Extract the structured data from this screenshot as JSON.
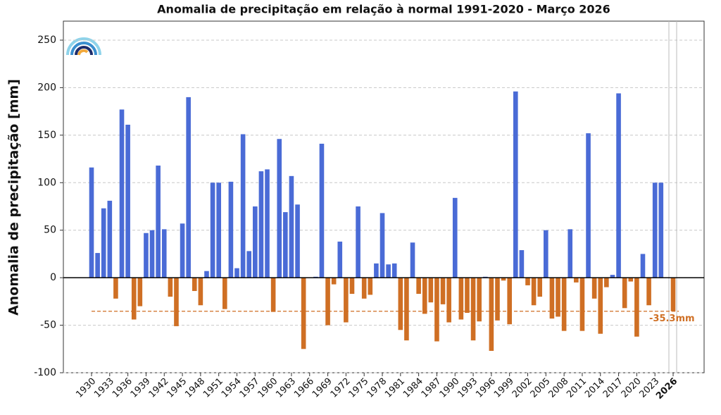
{
  "chart_data": {
    "type": "bar",
    "title": "Anomalia de precipitação em relação à normal 1991-2020 - Março 2026",
    "y_label": "Anomalia de precipitação [mm]",
    "categories": [
      "1930",
      null,
      null,
      "1933",
      null,
      null,
      "1936",
      null,
      null,
      "1939",
      null,
      null,
      "1942",
      null,
      null,
      "1945",
      null,
      null,
      "1948",
      null,
      null,
      "1951",
      null,
      null,
      "1954",
      null,
      null,
      "1957",
      null,
      null,
      "1960",
      null,
      null,
      "1963",
      null,
      null,
      "1966",
      null,
      null,
      "1969",
      null,
      null,
      "1972",
      null,
      null,
      "1975",
      null,
      null,
      "1978",
      null,
      null,
      "1981",
      null,
      null,
      "1984",
      null,
      null,
      "1987",
      null,
      null,
      "1990",
      null,
      null,
      "1993",
      null,
      null,
      "1996",
      null,
      null,
      "1999",
      null,
      null,
      "2002",
      null,
      null,
      "2005",
      null,
      null,
      "2008",
      null,
      null,
      "2011",
      null,
      null,
      "2014",
      null,
      null,
      "2017",
      null,
      null,
      "2020",
      null,
      null,
      "2023",
      null,
      null,
      "2026"
    ],
    "values": [
      116,
      26,
      73,
      81,
      -22,
      177,
      161,
      -44,
      -30,
      47,
      50,
      118,
      51,
      -20,
      -51,
      57,
      190,
      -14,
      -29,
      7,
      100,
      100,
      -33,
      101,
      10,
      151,
      28,
      75,
      112,
      114,
      -36,
      146,
      69,
      107,
      77,
      -75,
      0,
      1,
      141,
      -50,
      -7,
      38,
      -47,
      -17,
      75,
      -22,
      -18,
      15,
      68,
      14,
      15,
      -55,
      -66,
      37,
      -17,
      -38,
      -26,
      -67,
      -28,
      -47,
      84,
      -44,
      -37,
      -66,
      -46,
      1,
      -77,
      -45,
      -3,
      -49,
      196,
      29,
      -8,
      -29,
      -20,
      50,
      -43,
      -41,
      -56,
      51,
      -5,
      -56,
      152,
      -22,
      -59,
      -10,
      3,
      194,
      -32,
      -4,
      -62,
      25,
      -29,
      100,
      100,
      0,
      -35.3
    ],
    "colors": {
      "positive": "#4a6bd6",
      "negative": "#cf6f24"
    },
    "reference_line": {
      "value": -35.3,
      "label": "-35.3mm"
    },
    "ylim": [
      -100,
      270
    ],
    "yticks": [
      -100,
      -50,
      0,
      50,
      100,
      150,
      200,
      250
    ],
    "grid": true
  }
}
